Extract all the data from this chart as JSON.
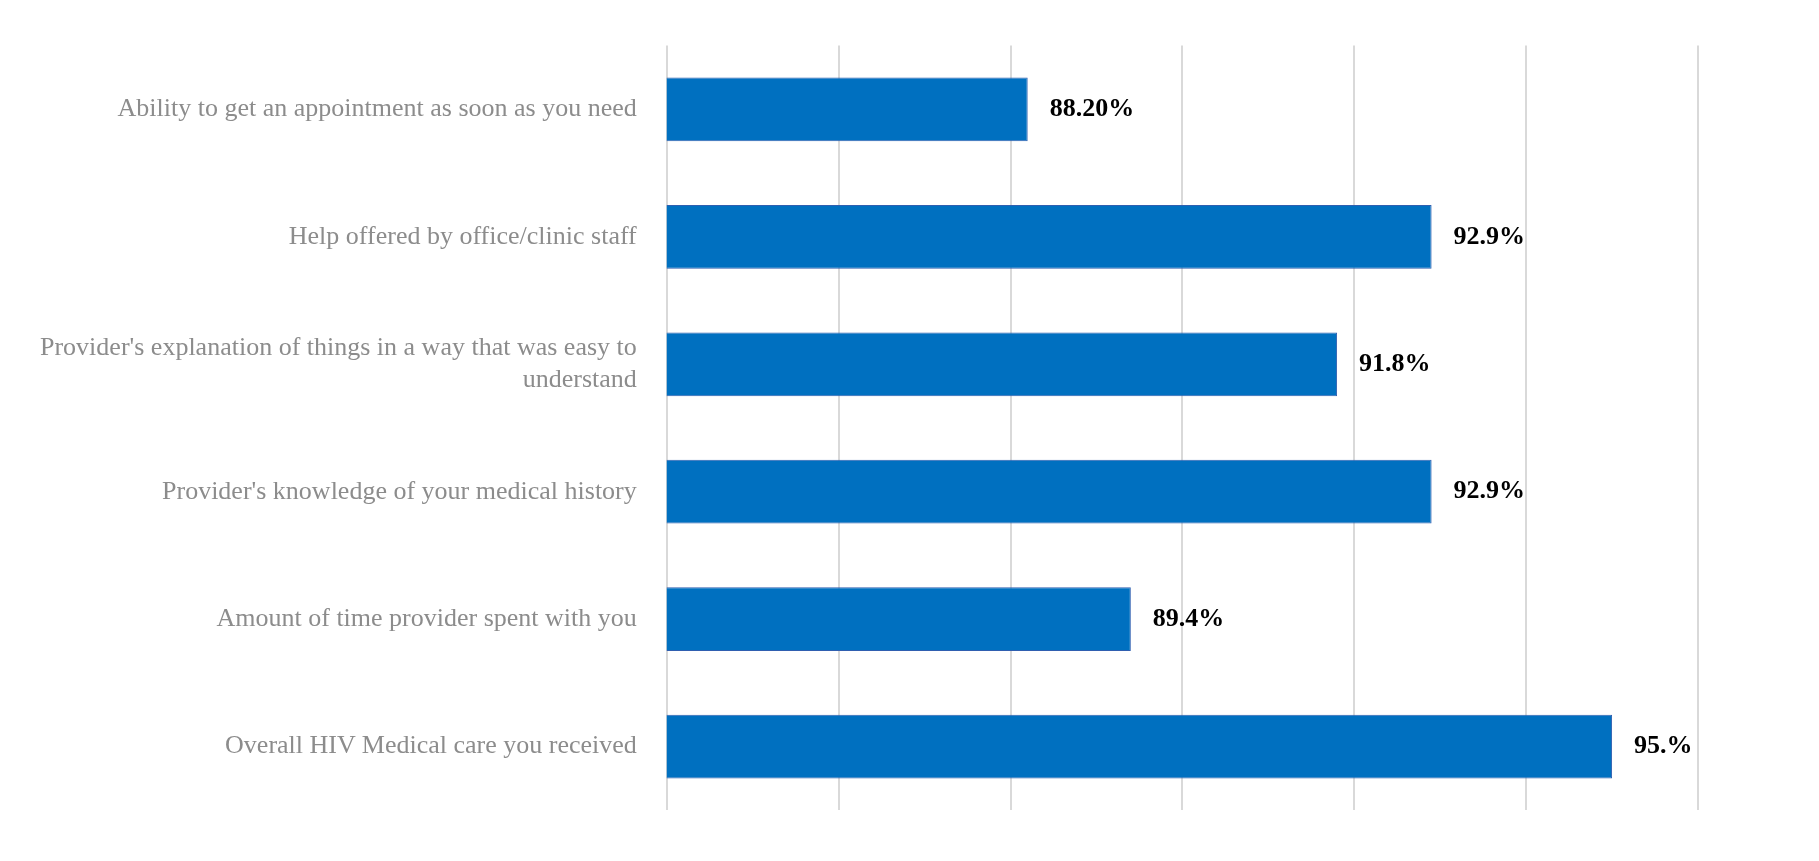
{
  "chart_data": {
    "type": "bar",
    "orientation": "horizontal",
    "categories": [
      "Ability to get an appointment as soon as you need",
      "Help offered by office/clinic staff",
      "Provider's explanation of things in a way that was easy to understand",
      "Provider's knowledge of your medical history",
      "Amount of time provider spent with you",
      "Overall HIV Medical care you received"
    ],
    "values": [
      88.2,
      92.9,
      91.8,
      92.9,
      89.4,
      95
    ],
    "value_labels": [
      "88.20%",
      "92.9%",
      "91.8%",
      "92.9%",
      "89.4%",
      "95.%"
    ],
    "color": "#0070c0",
    "xlim": [
      84,
      96
    ],
    "xticks": [
      {
        "value": 84,
        "label": null
      },
      {
        "value": 86,
        "label": null
      },
      {
        "value": 88,
        "label": null
      },
      {
        "value": 90,
        "label": null
      },
      {
        "value": 92,
        "label": null
      },
      {
        "value": 94,
        "label": null
      },
      {
        "value": 96,
        "label": null
      }
    ],
    "grid": "x",
    "tick_labels": "y",
    "legend": false
  }
}
